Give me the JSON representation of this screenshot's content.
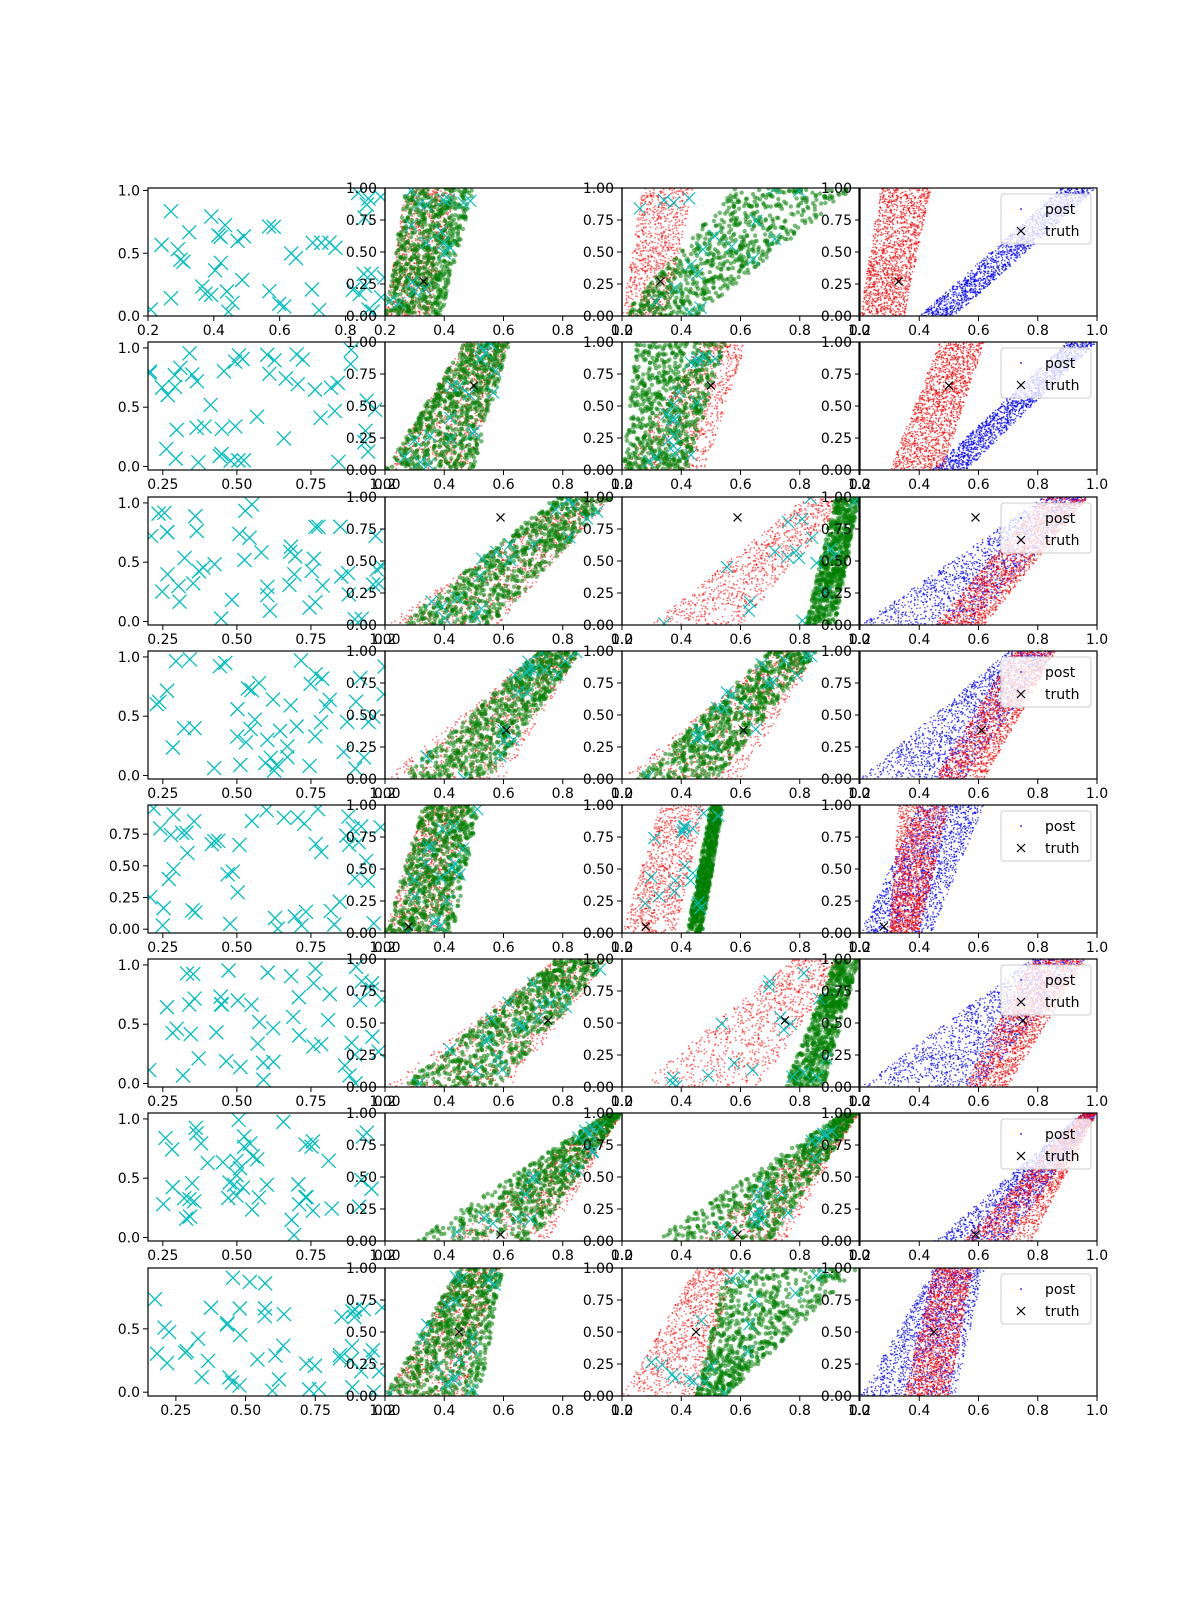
{
  "figure": {
    "rows": 8,
    "cols": 4,
    "legend_location": "upper right",
    "colors": {
      "samples": "#00bfbf",
      "panel2_series_a": "#ff0000",
      "panel2_series_b": "#008000",
      "post": "#0000ff",
      "post_overlay": "#ff0000",
      "truth": "#000000"
    }
  },
  "legend": {
    "post_label": "post",
    "truth_label": "truth"
  },
  "chart_data": [
    {
      "row": 1,
      "type": "scatter",
      "truth": [
        0.33,
        0.27
      ],
      "col1": {
        "xlim": [
          0.2,
          0.92
        ],
        "ylim": [
          0,
          1.02
        ],
        "xticks": [
          "0.2",
          "0.4",
          "0.6",
          "0.8"
        ],
        "yticks": [
          "0.0",
          "0.5",
          "1.0"
        ],
        "yvals": [
          0,
          0.5,
          1.0
        ]
      },
      "col2": {
        "a": [
          0.2,
          0.35,
          0.27,
          0.44,
          0.8
        ],
        "b": [
          0.2,
          0.39,
          0.27,
          0.5,
          1.0
        ]
      },
      "col3": {
        "a": [
          0.2,
          0.35,
          0.27,
          0.44,
          0.8
        ],
        "b": [
          0.2,
          0.45,
          0.58,
          0.98,
          1.0
        ]
      },
      "col4": {
        "blue": [
          0.4,
          0.52,
          0.88,
          1.0,
          1.0
        ],
        "red": [
          0.2,
          0.35,
          0.27,
          0.44,
          1.0
        ]
      },
      "yaxis": {
        "ylim": [
          0,
          1
        ],
        "yticks": [
          "0.00",
          "0.25",
          "0.50",
          "0.75",
          "1.00"
        ],
        "yvals": [
          0,
          0.25,
          0.5,
          0.75,
          1.0
        ]
      }
    },
    {
      "row": 2,
      "type": "scatter",
      "truth": [
        0.5,
        0.66
      ],
      "col1": {
        "xlim": [
          0.2,
          1.0
        ],
        "ylim": [
          -0.03,
          1.05
        ],
        "xticks": [
          "0.25",
          "0.50",
          "0.75",
          "1.00"
        ],
        "yticks": [
          "0.0",
          "0.5",
          "1.0"
        ],
        "yvals": [
          0,
          0.5,
          1.0
        ]
      },
      "col2": {
        "a": [
          0.2,
          0.48,
          0.47,
          0.62,
          1.0
        ],
        "b": [
          0.2,
          0.5,
          0.47,
          0.62,
          1.0
        ]
      },
      "col3": {
        "a": [
          0.2,
          0.48,
          0.47,
          0.62,
          1.0
        ],
        "b": [
          0.2,
          0.42,
          0.25,
          0.55,
          0.7
        ]
      },
      "col4": {
        "blue": [
          0.44,
          0.56,
          0.9,
          1.0,
          1.0
        ],
        "red": [
          0.3,
          0.48,
          0.47,
          0.62,
          1.0
        ]
      },
      "yaxis": {
        "ylim": [
          0,
          1
        ],
        "yticks": [
          "0.00",
          "0.25",
          "0.50",
          "0.75",
          "1.00"
        ],
        "yvals": [
          0,
          0.25,
          0.5,
          0.75,
          1.0
        ]
      }
    },
    {
      "row": 3,
      "type": "scatter",
      "truth": [
        0.59,
        0.84
      ],
      "col1": {
        "xlim": [
          0.2,
          1.0
        ],
        "ylim": [
          -0.03,
          1.05
        ],
        "xticks": [
          "0.25",
          "0.50",
          "0.75",
          "1.00"
        ],
        "yticks": [
          "0.0",
          "0.5",
          "1.0"
        ],
        "yvals": [
          0,
          0.5,
          1.0
        ]
      },
      "col2": {
        "a": [
          0.2,
          0.58,
          0.82,
          0.97,
          0.8
        ],
        "b": [
          0.25,
          0.56,
          0.78,
          0.97,
          1.0
        ]
      },
      "col3": {
        "a": [
          0.3,
          0.6,
          0.82,
          0.97,
          0.8
        ],
        "b": [
          0.82,
          0.92,
          0.92,
          1.0,
          1.0
        ]
      },
      "col4": {
        "blue": [
          0.2,
          0.58,
          0.82,
          0.97,
          0.45
        ],
        "red": [
          0.45,
          0.62,
          0.82,
          0.97,
          1.0
        ]
      },
      "yaxis": {
        "ylim": [
          0,
          1
        ],
        "yticks": [
          "0.00",
          "0.25",
          "0.50",
          "0.75",
          "1.00"
        ],
        "yvals": [
          0,
          0.25,
          0.5,
          0.75,
          1.0
        ]
      }
    },
    {
      "row": 4,
      "type": "scatter",
      "truth": [
        0.61,
        0.38
      ],
      "col1": {
        "xlim": [
          0.2,
          1.0
        ],
        "ylim": [
          -0.03,
          1.05
        ],
        "xticks": [
          "0.25",
          "0.50",
          "0.75",
          "1.00"
        ],
        "yticks": [
          "0.0",
          "0.5",
          "1.0"
        ],
        "yvals": [
          0,
          0.5,
          1.0
        ]
      },
      "col2": {
        "a": [
          0.2,
          0.6,
          0.72,
          0.86,
          0.8
        ],
        "b": [
          0.25,
          0.55,
          0.72,
          0.86,
          1.0
        ]
      },
      "col3": {
        "a": [
          0.2,
          0.6,
          0.72,
          0.86,
          0.8
        ],
        "b": [
          0.25,
          0.52,
          0.7,
          0.86,
          1.0
        ]
      },
      "col4": {
        "blue": [
          0.2,
          0.55,
          0.7,
          0.86,
          0.45
        ],
        "red": [
          0.45,
          0.62,
          0.72,
          0.86,
          1.0
        ]
      },
      "yaxis": {
        "ylim": [
          0,
          1
        ],
        "yticks": [
          "0.00",
          "0.25",
          "0.50",
          "0.75",
          "1.00"
        ],
        "yvals": [
          0,
          0.25,
          0.5,
          0.75,
          1.0
        ]
      }
    },
    {
      "row": 5,
      "type": "scatter",
      "truth": [
        0.28,
        0.05
      ],
      "col1": {
        "xlim": [
          0.2,
          1.0
        ],
        "ylim": [
          -0.03,
          0.98
        ],
        "xticks": [
          "0.25",
          "0.50",
          "0.75",
          "1.00"
        ],
        "yticks": [
          "0.00",
          "0.25",
          "0.50",
          "0.75"
        ],
        "yvals": [
          0,
          0.25,
          0.5,
          0.75
        ]
      },
      "col2": {
        "a": [
          0.2,
          0.41,
          0.33,
          0.48,
          0.8
        ],
        "b": [
          0.2,
          0.43,
          0.33,
          0.52,
          1.0
        ]
      },
      "col3": {
        "a": [
          0.2,
          0.38,
          0.33,
          0.48,
          0.8
        ],
        "b": [
          0.42,
          0.47,
          0.5,
          0.54,
          1.0
        ]
      },
      "col4": {
        "blue": [
          0.2,
          0.44,
          0.4,
          0.62,
          1.0
        ],
        "red": [
          0.3,
          0.4,
          0.33,
          0.5,
          1.0
        ]
      },
      "yaxis": {
        "ylim": [
          0,
          1
        ],
        "yticks": [
          "0.00",
          "0.25",
          "0.50",
          "0.75",
          "1.00"
        ],
        "yvals": [
          0,
          0.25,
          0.5,
          0.75,
          1.0
        ]
      }
    },
    {
      "row": 6,
      "type": "scatter",
      "truth": [
        0.75,
        0.52
      ],
      "col1": {
        "xlim": [
          0.2,
          1.0
        ],
        "ylim": [
          -0.03,
          1.05
        ],
        "xticks": [
          "0.25",
          "0.50",
          "0.75",
          "1.00"
        ],
        "yticks": [
          "0.0",
          "0.5",
          "1.0"
        ],
        "yvals": [
          0,
          0.5,
          1.0
        ]
      },
      "col2": {
        "a": [
          0.2,
          0.62,
          0.78,
          0.96,
          0.8
        ],
        "b": [
          0.25,
          0.58,
          0.78,
          0.96,
          1.0
        ]
      },
      "col3": {
        "a": [
          0.25,
          0.66,
          0.78,
          0.96,
          0.8
        ],
        "b": [
          0.75,
          0.88,
          0.92,
          1.0,
          1.0
        ]
      },
      "col4": {
        "blue": [
          0.2,
          0.6,
          0.78,
          0.96,
          0.45
        ],
        "red": [
          0.55,
          0.7,
          0.78,
          0.96,
          1.0
        ]
      },
      "yaxis": {
        "ylim": [
          0,
          1
        ],
        "yticks": [
          "0.00",
          "0.25",
          "0.50",
          "0.75",
          "1.00"
        ],
        "yvals": [
          0,
          0.25,
          0.5,
          0.75,
          1.0
        ]
      }
    },
    {
      "row": 7,
      "type": "scatter",
      "truth": [
        0.59,
        0.05
      ],
      "col1": {
        "xlim": [
          0.2,
          1.0
        ],
        "ylim": [
          -0.03,
          1.05
        ],
        "xticks": [
          "0.25",
          "0.50",
          "0.75",
          "1.00"
        ],
        "yticks": [
          "0.0",
          "0.5",
          "1.0"
        ],
        "yvals": [
          0,
          0.5,
          1.0
        ]
      },
      "col2": {
        "a": [
          0.4,
          0.75,
          0.95,
          1.0,
          0.8
        ],
        "b": [
          0.3,
          0.7,
          0.95,
          1.0,
          1.0
        ]
      },
      "col3": {
        "a": [
          0.45,
          0.75,
          0.95,
          1.0,
          0.8
        ],
        "b": [
          0.3,
          0.7,
          0.95,
          1.0,
          1.0
        ]
      },
      "col4": {
        "blue": [
          0.45,
          0.7,
          0.95,
          1.0,
          0.45
        ],
        "red": [
          0.55,
          0.78,
          0.95,
          1.0,
          1.0
        ]
      },
      "yaxis": {
        "ylim": [
          0,
          1
        ],
        "yticks": [
          "0.00",
          "0.25",
          "0.50",
          "0.75",
          "1.00"
        ],
        "yvals": [
          0,
          0.25,
          0.5,
          0.75,
          1.0
        ]
      }
    },
    {
      "row": 8,
      "type": "scatter",
      "truth": [
        0.45,
        0.5
      ],
      "col1": {
        "xlim": [
          0.15,
          1.0
        ],
        "ylim": [
          -0.03,
          0.98
        ],
        "xticks": [
          "0.25",
          "0.50",
          "0.75",
          "1.00"
        ],
        "yticks": [
          "0.0",
          "0.5"
        ],
        "yvals": [
          0,
          0.5
        ]
      },
      "col2": {
        "a": [
          0.2,
          0.47,
          0.45,
          0.58,
          0.8
        ],
        "b": [
          0.2,
          0.52,
          0.45,
          0.6,
          1.0
        ]
      },
      "col3": {
        "a": [
          0.2,
          0.47,
          0.45,
          0.58,
          0.8
        ],
        "b": [
          0.45,
          0.55,
          0.55,
          1.0,
          1.0
        ]
      },
      "col4": {
        "blue": [
          0.2,
          0.52,
          0.45,
          0.62,
          1.0
        ],
        "red": [
          0.35,
          0.5,
          0.45,
          0.58,
          1.0
        ]
      },
      "yaxis": {
        "ylim": [
          0,
          1
        ],
        "yticks": [
          "0.00",
          "0.25",
          "0.50",
          "0.75",
          "1.00"
        ],
        "yvals": [
          0,
          0.25,
          0.5,
          0.75,
          1.0
        ]
      }
    }
  ],
  "shared_xaxis": {
    "xlim": [
      0.2,
      1.0
    ],
    "xticks": [
      "0.2",
      "0.4",
      "0.6",
      "0.8",
      "1.0"
    ],
    "xvals": [
      0.2,
      0.4,
      0.6,
      0.8,
      1.0
    ]
  }
}
